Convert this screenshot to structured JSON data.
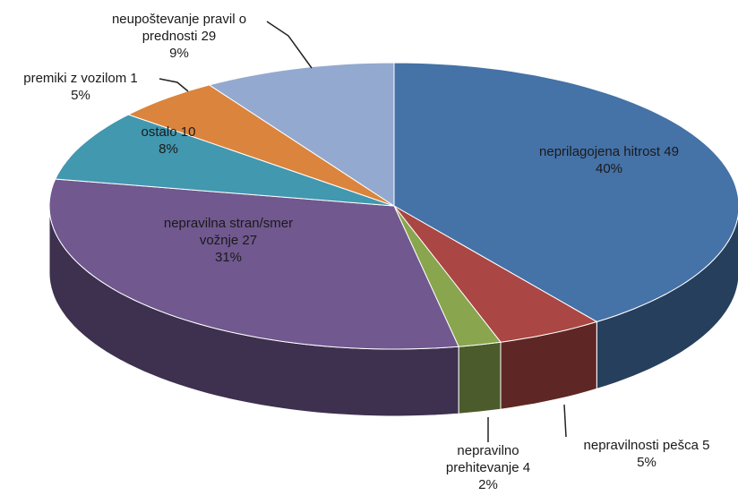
{
  "chart_data": {
    "type": "pie3d",
    "categories": [
      "neprilagojena hitrost 49",
      "nepravilnosti pešca  5",
      "nepravilno prehitevanje 4",
      "nepravilna stran/smer vožnje 27",
      "ostalo 10",
      "premiki z vozilom 1",
      "neupoštevanje pravil o prednosti 29"
    ],
    "values": [
      40,
      5,
      2,
      31,
      8,
      5,
      9
    ],
    "value_labels": [
      "40%",
      "5%",
      "2%",
      "31%",
      "8%",
      "5%",
      "9%"
    ],
    "colors": [
      "#4572a7",
      "#aa4643",
      "#89a54e",
      "#71588f",
      "#4198af",
      "#db843d",
      "#93a9cf"
    ]
  }
}
